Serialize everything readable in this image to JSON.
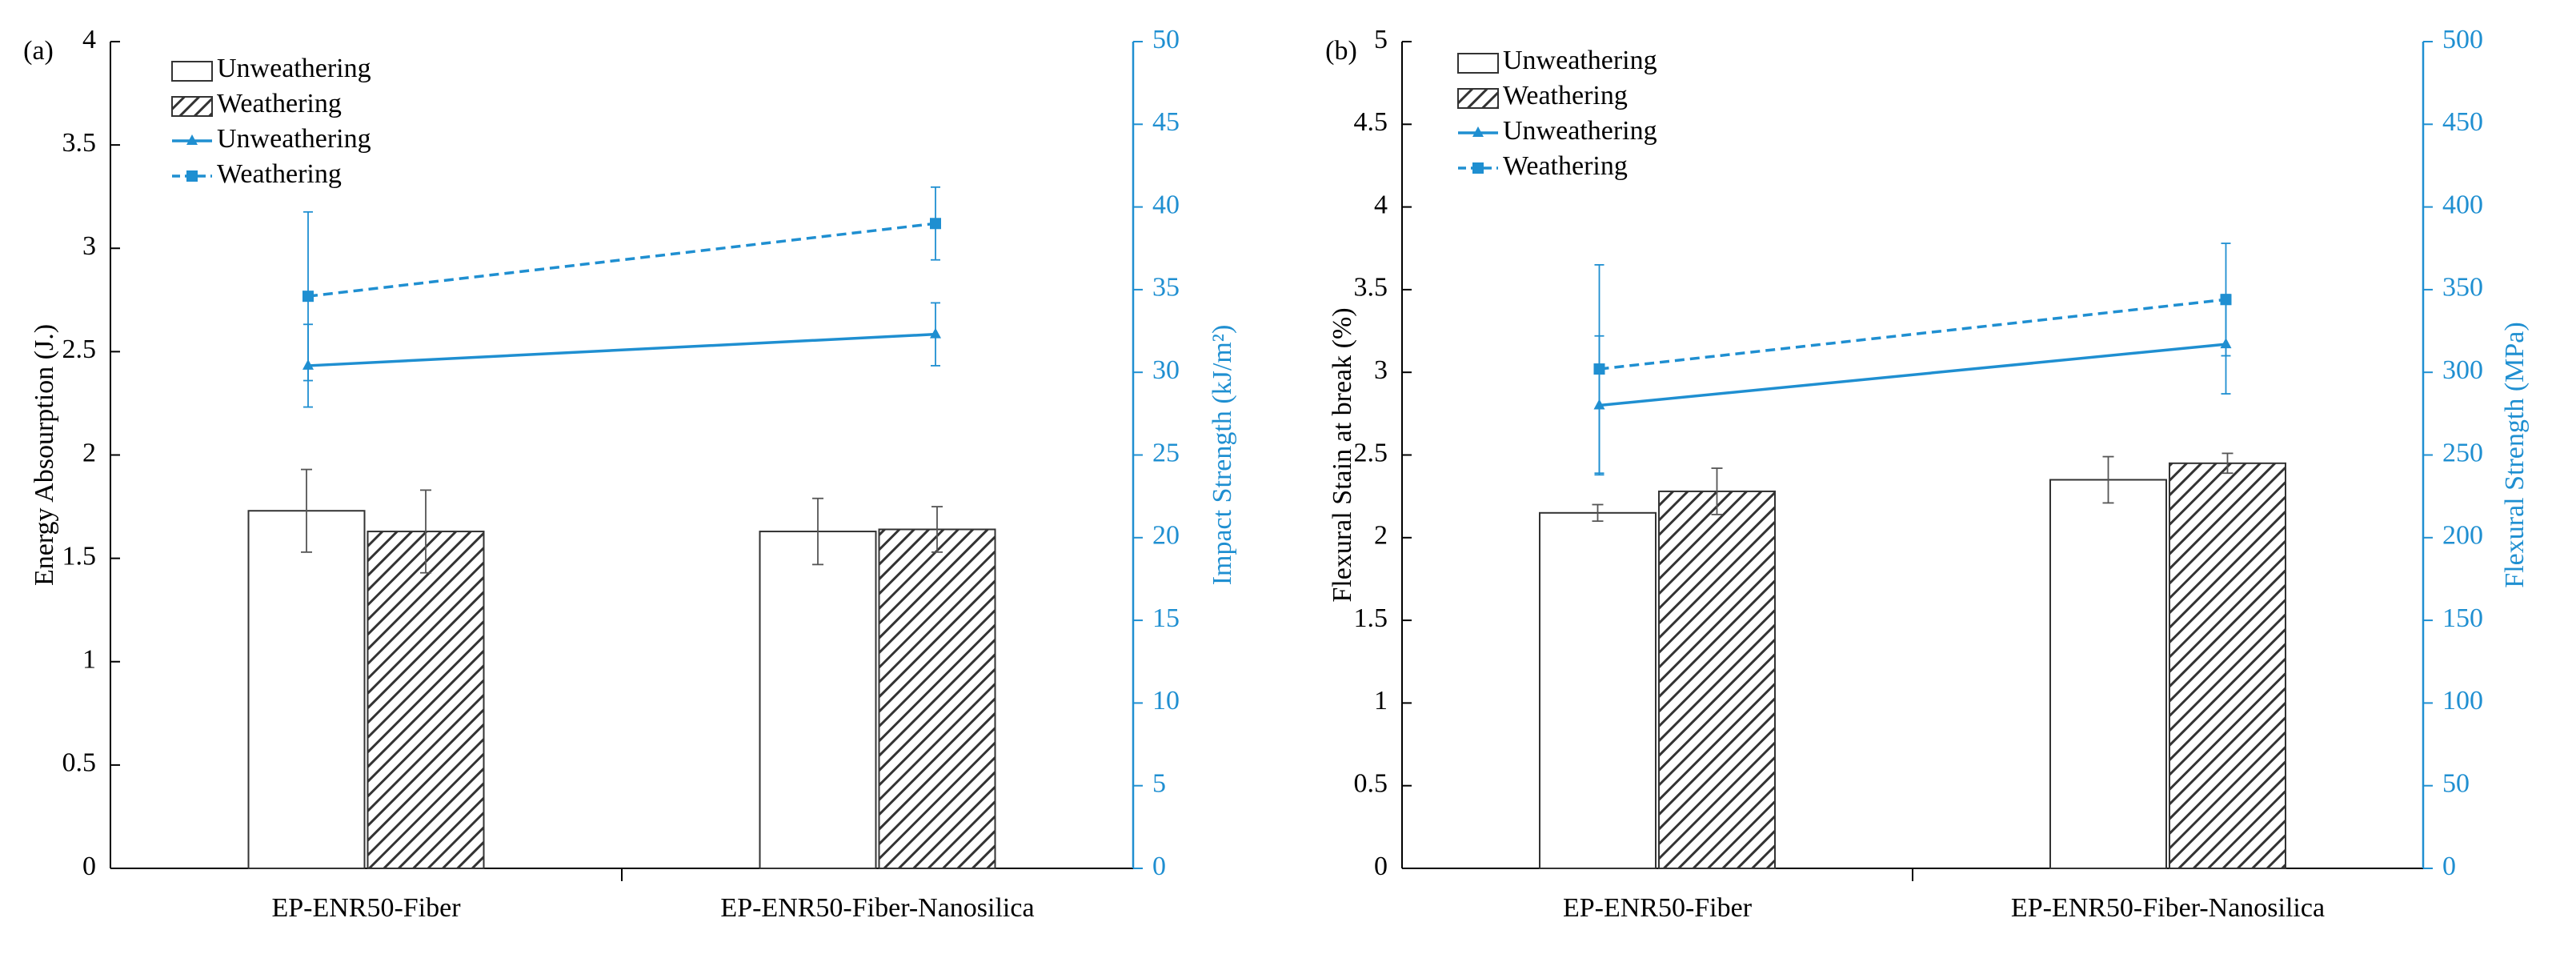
{
  "colors": {
    "axis": "#000000",
    "accent": "#1f8fd1",
    "bar_border": "#333333",
    "hatch": "#333333"
  },
  "chart_data": [
    {
      "type": "bar",
      "panel": "(a)",
      "categories": [
        "EP-ENR50-Fiber",
        "EP-ENR50-Fiber-Nanosilica"
      ],
      "ylabel": "Energy Absourption (J.)",
      "ylim": [
        0,
        4
      ],
      "yticks": [
        "0",
        "0.5",
        "1",
        "1.5",
        "2",
        "2.5",
        "3",
        "3.5",
        "4"
      ],
      "y2label": "Impact Strength (kJ/m²)",
      "y2lim": [
        0,
        50
      ],
      "y2ticks": [
        "0",
        "5",
        "10",
        "15",
        "20",
        "25",
        "30",
        "35",
        "40",
        "45",
        "50"
      ],
      "legend": [
        "Unweathering",
        "Weathering",
        "Unweathering",
        "Weathering"
      ],
      "bar_series": [
        {
          "name": "Unweathering",
          "values": [
            1.73,
            1.63
          ],
          "errors": [
            0.2,
            0.16
          ]
        },
        {
          "name": "Weathering",
          "values": [
            1.63,
            1.64
          ],
          "errors": [
            0.2,
            0.11
          ]
        }
      ],
      "line_series": [
        {
          "name": "Unweathering",
          "axis": "right",
          "style": "solid",
          "marker": "triangle",
          "values": [
            30.4,
            32.3
          ],
          "errors": [
            2.5,
            1.9
          ]
        },
        {
          "name": "Weathering",
          "axis": "right",
          "style": "dashed",
          "marker": "square",
          "values": [
            34.6,
            39.0
          ],
          "errors": [
            5.1,
            2.2
          ]
        }
      ]
    },
    {
      "type": "bar",
      "panel": "(b)",
      "categories": [
        "EP-ENR50-Fiber",
        "EP-ENR50-Fiber-Nanosilica"
      ],
      "ylabel": "Flexural Stain at break (%)",
      "ylim": [
        0,
        5
      ],
      "yticks": [
        "0",
        "0.5",
        "1",
        "1.5",
        "2",
        "2.5",
        "3",
        "3.5",
        "4",
        "4.5",
        "5"
      ],
      "y2label": "Flexural Strength (MPa)",
      "y2lim": [
        0,
        500
      ],
      "y2ticks": [
        "0",
        "50",
        "100",
        "150",
        "200",
        "250",
        "300",
        "350",
        "400",
        "450",
        "500"
      ],
      "legend": [
        "Unweathering",
        "Weathering",
        "Unweathering",
        "Weathering"
      ],
      "bar_series": [
        {
          "name": "Unweathering",
          "values": [
            2.15,
            2.35
          ],
          "errors": [
            0.05,
            0.14
          ]
        },
        {
          "name": "Weathering",
          "values": [
            2.28,
            2.45
          ],
          "errors": [
            0.14,
            0.06
          ]
        }
      ],
      "line_series": [
        {
          "name": "Unweathering",
          "axis": "right",
          "style": "solid",
          "marker": "triangle",
          "values": [
            280,
            317
          ],
          "errors": [
            42,
            30
          ]
        },
        {
          "name": "Weathering",
          "axis": "right",
          "style": "dashed",
          "marker": "square",
          "values": [
            302,
            344
          ],
          "errors": [
            63,
            34
          ]
        }
      ]
    }
  ]
}
